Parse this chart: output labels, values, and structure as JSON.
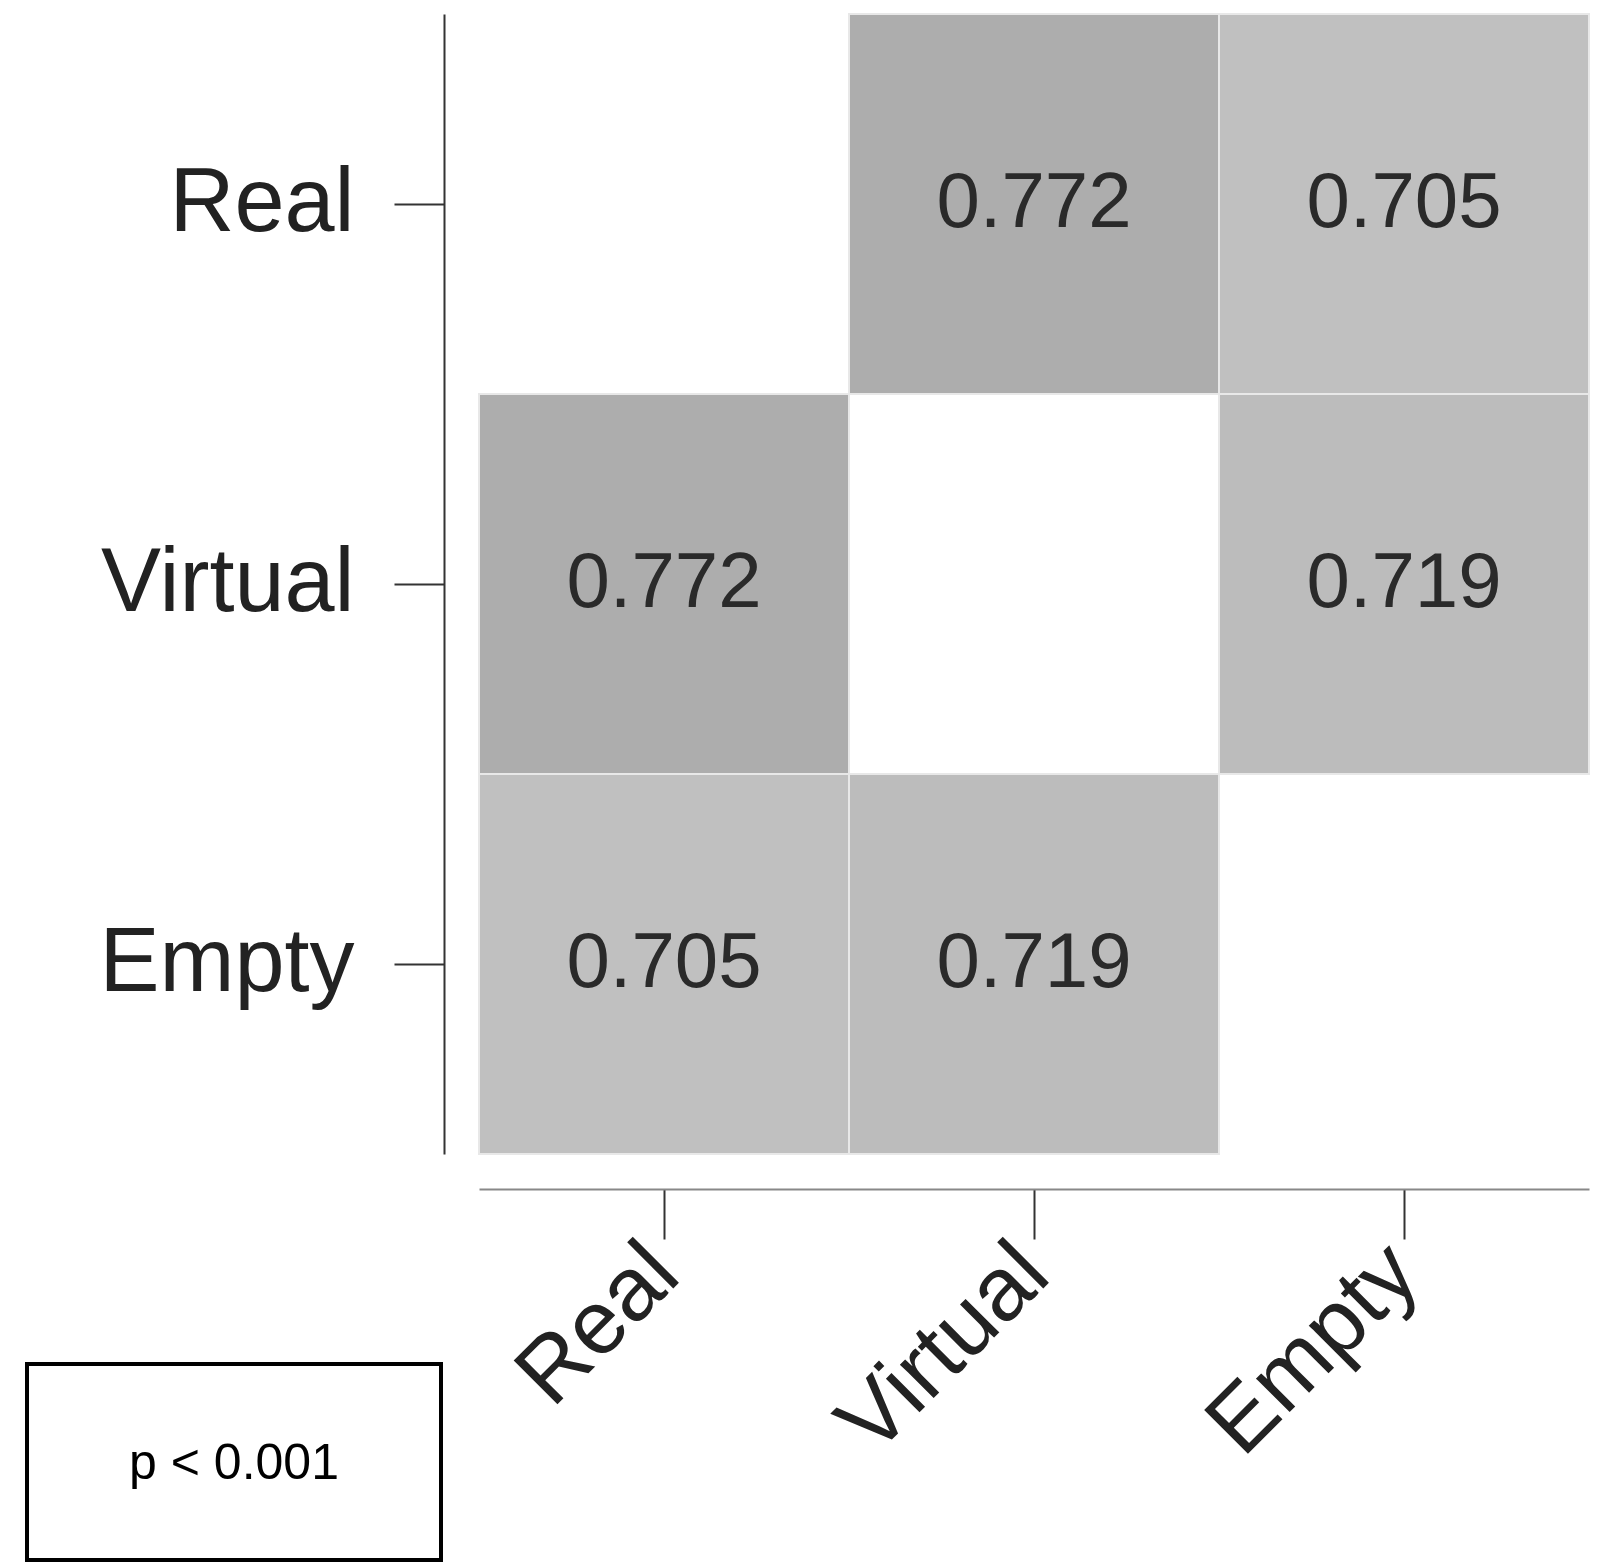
{
  "chart_data": {
    "type": "heatmap",
    "categories": [
      "Real",
      "Virtual",
      "Empty"
    ],
    "y_categories": [
      "Real",
      "Virtual",
      "Empty"
    ],
    "cells": [
      [
        null,
        0.772,
        0.705
      ],
      [
        0.772,
        null,
        0.719
      ],
      [
        0.705,
        0.719,
        null
      ]
    ],
    "data_labels": true,
    "annotations": [
      "p < 0.001"
    ]
  }
}
